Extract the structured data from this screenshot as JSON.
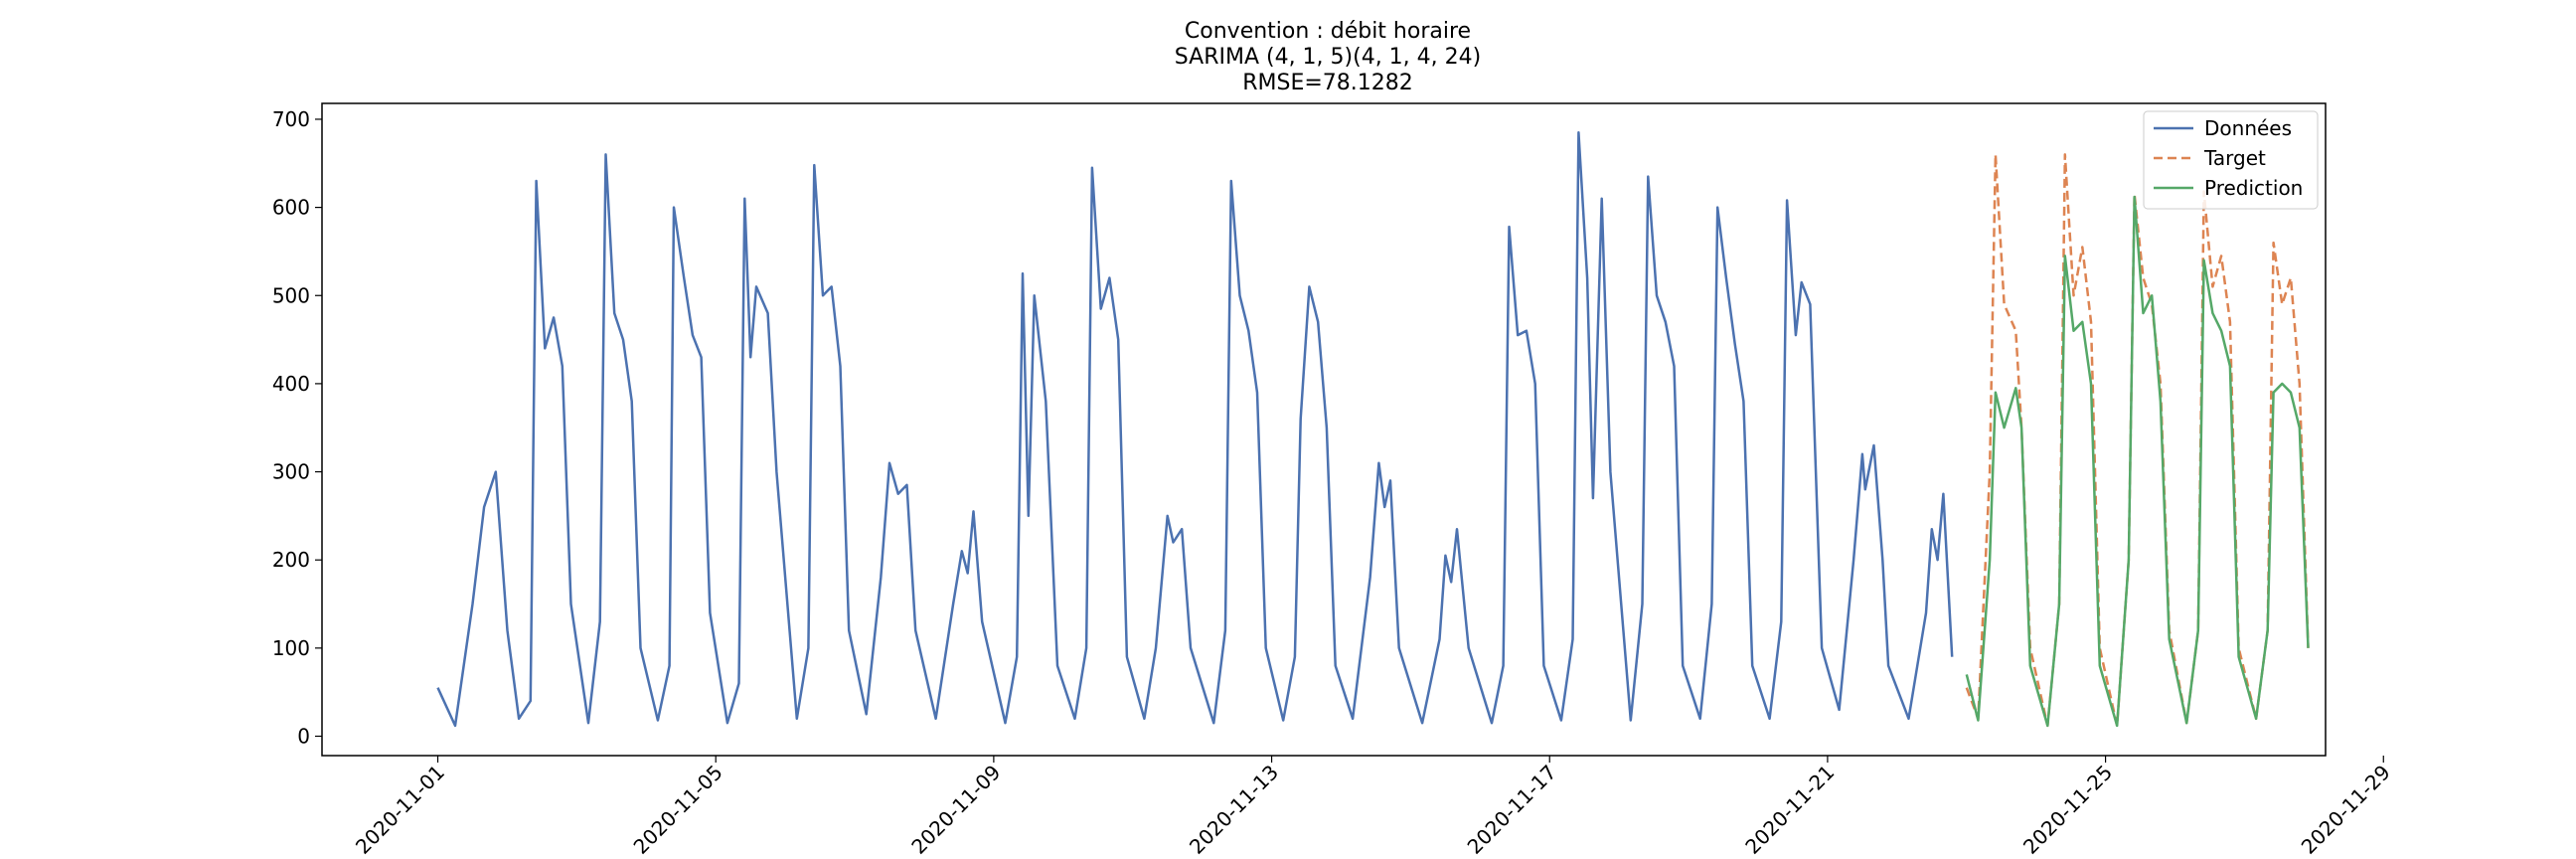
{
  "chart_data": {
    "type": "line",
    "title": "Convention : débit horaire",
    "subtitle": "SARIMA (4, 1, 5)(4, 1, 4, 24)",
    "metric": "RMSE=78.1282",
    "xlabel": "",
    "ylabel": "",
    "xlim": [
      "2020-10-30T08:00",
      "2020-11-28T04:00"
    ],
    "ylim": [
      -22,
      718
    ],
    "x_ticks": [
      "2020-11-01",
      "2020-11-05",
      "2020-11-09",
      "2020-11-13",
      "2020-11-17",
      "2020-11-21",
      "2020-11-25",
      "2020-11-29"
    ],
    "y_ticks": [
      0,
      100,
      200,
      300,
      400,
      500,
      600,
      700
    ],
    "grid": false,
    "legend_position": "top-right",
    "series": [
      {
        "name": "Données",
        "color": "#4c72b0",
        "style": "solid",
        "points": [
          [
            "2020-11-01T00:00",
            55
          ],
          [
            "2020-11-01T06:00",
            12
          ],
          [
            "2020-11-01T12:00",
            150
          ],
          [
            "2020-11-01T16:00",
            260
          ],
          [
            "2020-11-01T20:00",
            300
          ],
          [
            "2020-11-02T00:00",
            120
          ],
          [
            "2020-11-02T04:00",
            20
          ],
          [
            "2020-11-02T08:00",
            40
          ],
          [
            "2020-11-02T10:00",
            630
          ],
          [
            "2020-11-02T13:00",
            440
          ],
          [
            "2020-11-02T16:00",
            475
          ],
          [
            "2020-11-02T19:00",
            420
          ],
          [
            "2020-11-02T22:00",
            150
          ],
          [
            "2020-11-03T04:00",
            15
          ],
          [
            "2020-11-03T08:00",
            130
          ],
          [
            "2020-11-03T10:00",
            660
          ],
          [
            "2020-11-03T13:00",
            480
          ],
          [
            "2020-11-03T16:00",
            450
          ],
          [
            "2020-11-03T19:00",
            380
          ],
          [
            "2020-11-03T22:00",
            100
          ],
          [
            "2020-11-04T04:00",
            18
          ],
          [
            "2020-11-04T08:00",
            80
          ],
          [
            "2020-11-04T09:30",
            600
          ],
          [
            "2020-11-04T13:00",
            520
          ],
          [
            "2020-11-04T16:00",
            455
          ],
          [
            "2020-11-04T19:00",
            430
          ],
          [
            "2020-11-04T22:00",
            140
          ],
          [
            "2020-11-05T04:00",
            15
          ],
          [
            "2020-11-05T08:00",
            60
          ],
          [
            "2020-11-05T10:00",
            610
          ],
          [
            "2020-11-05T12:00",
            430
          ],
          [
            "2020-11-05T14:00",
            510
          ],
          [
            "2020-11-05T18:00",
            480
          ],
          [
            "2020-11-05T21:00",
            300
          ],
          [
            "2020-11-06T04:00",
            20
          ],
          [
            "2020-11-06T08:00",
            100
          ],
          [
            "2020-11-06T10:00",
            648
          ],
          [
            "2020-11-06T13:00",
            500
          ],
          [
            "2020-11-06T16:00",
            510
          ],
          [
            "2020-11-06T19:00",
            420
          ],
          [
            "2020-11-06T22:00",
            120
          ],
          [
            "2020-11-07T04:00",
            25
          ],
          [
            "2020-11-07T09:00",
            180
          ],
          [
            "2020-11-07T12:00",
            310
          ],
          [
            "2020-11-07T15:00",
            275
          ],
          [
            "2020-11-07T18:00",
            285
          ],
          [
            "2020-11-07T21:00",
            120
          ],
          [
            "2020-11-08T04:00",
            20
          ],
          [
            "2020-11-08T10:00",
            150
          ],
          [
            "2020-11-08T13:00",
            210
          ],
          [
            "2020-11-08T15:00",
            185
          ],
          [
            "2020-11-08T17:00",
            255
          ],
          [
            "2020-11-08T20:00",
            130
          ],
          [
            "2020-11-09T04:00",
            15
          ],
          [
            "2020-11-09T08:00",
            90
          ],
          [
            "2020-11-09T10:00",
            525
          ],
          [
            "2020-11-09T12:00",
            250
          ],
          [
            "2020-11-09T14:00",
            500
          ],
          [
            "2020-11-09T18:00",
            380
          ],
          [
            "2020-11-09T22:00",
            80
          ],
          [
            "2020-11-10T04:00",
            20
          ],
          [
            "2020-11-10T08:00",
            100
          ],
          [
            "2020-11-10T10:00",
            645
          ],
          [
            "2020-11-10T13:00",
            485
          ],
          [
            "2020-11-10T16:00",
            520
          ],
          [
            "2020-11-10T19:00",
            450
          ],
          [
            "2020-11-10T22:00",
            90
          ],
          [
            "2020-11-11T04:00",
            20
          ],
          [
            "2020-11-11T08:00",
            100
          ],
          [
            "2020-11-11T12:00",
            250
          ],
          [
            "2020-11-11T14:00",
            220
          ],
          [
            "2020-11-11T17:00",
            235
          ],
          [
            "2020-11-11T20:00",
            100
          ],
          [
            "2020-11-12T04:00",
            15
          ],
          [
            "2020-11-12T08:00",
            120
          ],
          [
            "2020-11-12T10:00",
            630
          ],
          [
            "2020-11-12T13:00",
            500
          ],
          [
            "2020-11-12T16:00",
            460
          ],
          [
            "2020-11-12T19:00",
            390
          ],
          [
            "2020-11-12T22:00",
            100
          ],
          [
            "2020-11-13T04:00",
            18
          ],
          [
            "2020-11-13T08:00",
            90
          ],
          [
            "2020-11-13T10:00",
            360
          ],
          [
            "2020-11-13T13:00",
            510
          ],
          [
            "2020-11-13T16:00",
            470
          ],
          [
            "2020-11-13T19:00",
            350
          ],
          [
            "2020-11-13T22:00",
            80
          ],
          [
            "2020-11-14T04:00",
            20
          ],
          [
            "2020-11-14T10:00",
            180
          ],
          [
            "2020-11-14T13:00",
            310
          ],
          [
            "2020-11-14T15:00",
            260
          ],
          [
            "2020-11-14T17:00",
            290
          ],
          [
            "2020-11-14T20:00",
            100
          ],
          [
            "2020-11-15T04:00",
            15
          ],
          [
            "2020-11-15T10:00",
            110
          ],
          [
            "2020-11-15T12:00",
            205
          ],
          [
            "2020-11-15T14:00",
            175
          ],
          [
            "2020-11-15T16:00",
            235
          ],
          [
            "2020-11-15T20:00",
            100
          ],
          [
            "2020-11-16T04:00",
            15
          ],
          [
            "2020-11-16T08:00",
            80
          ],
          [
            "2020-11-16T10:00",
            578
          ],
          [
            "2020-11-16T13:00",
            455
          ],
          [
            "2020-11-16T16:00",
            460
          ],
          [
            "2020-11-16T19:00",
            400
          ],
          [
            "2020-11-16T22:00",
            80
          ],
          [
            "2020-11-17T04:00",
            18
          ],
          [
            "2020-11-17T08:00",
            110
          ],
          [
            "2020-11-17T10:00",
            685
          ],
          [
            "2020-11-17T13:00",
            520
          ],
          [
            "2020-11-17T15:00",
            270
          ],
          [
            "2020-11-17T18:00",
            610
          ],
          [
            "2020-11-17T21:00",
            300
          ],
          [
            "2020-11-18T04:00",
            18
          ],
          [
            "2020-11-18T08:00",
            150
          ],
          [
            "2020-11-18T10:00",
            635
          ],
          [
            "2020-11-18T13:00",
            500
          ],
          [
            "2020-11-18T16:00",
            470
          ],
          [
            "2020-11-18T19:00",
            420
          ],
          [
            "2020-11-18T22:00",
            80
          ],
          [
            "2020-11-19T04:00",
            20
          ],
          [
            "2020-11-19T08:00",
            150
          ],
          [
            "2020-11-19T10:00",
            600
          ],
          [
            "2020-11-19T13:00",
            520
          ],
          [
            "2020-11-19T16:00",
            445
          ],
          [
            "2020-11-19T19:00",
            380
          ],
          [
            "2020-11-19T22:00",
            80
          ],
          [
            "2020-11-20T04:00",
            20
          ],
          [
            "2020-11-20T08:00",
            130
          ],
          [
            "2020-11-20T10:00",
            608
          ],
          [
            "2020-11-20T13:00",
            455
          ],
          [
            "2020-11-20T15:00",
            515
          ],
          [
            "2020-11-20T18:00",
            490
          ],
          [
            "2020-11-20T22:00",
            100
          ],
          [
            "2020-11-21T04:00",
            30
          ],
          [
            "2020-11-21T09:00",
            200
          ],
          [
            "2020-11-21T12:00",
            320
          ],
          [
            "2020-11-21T13:00",
            280
          ],
          [
            "2020-11-21T16:00",
            330
          ],
          [
            "2020-11-21T19:00",
            200
          ],
          [
            "2020-11-21T21:00",
            80
          ],
          [
            "2020-11-22T04:00",
            20
          ],
          [
            "2020-11-22T10:00",
            140
          ],
          [
            "2020-11-22T12:00",
            235
          ],
          [
            "2020-11-22T14:00",
            200
          ],
          [
            "2020-11-22T16:00",
            275
          ],
          [
            "2020-11-22T19:00",
            90
          ]
        ]
      },
      {
        "name": "Target",
        "color": "#dd8452",
        "style": "dashed",
        "points": [
          [
            "2020-11-23T00:00",
            55
          ],
          [
            "2020-11-23T04:00",
            20
          ],
          [
            "2020-11-23T08:00",
            300
          ],
          [
            "2020-11-23T10:00",
            660
          ],
          [
            "2020-11-23T13:00",
            490
          ],
          [
            "2020-11-23T17:00",
            460
          ],
          [
            "2020-11-23T19:00",
            350
          ],
          [
            "2020-11-23T22:00",
            100
          ],
          [
            "2020-11-24T04:00",
            12
          ],
          [
            "2020-11-24T08:00",
            150
          ],
          [
            "2020-11-24T10:00",
            660
          ],
          [
            "2020-11-24T13:00",
            500
          ],
          [
            "2020-11-24T16:00",
            555
          ],
          [
            "2020-11-24T19:00",
            470
          ],
          [
            "2020-11-24T22:00",
            100
          ],
          [
            "2020-11-25T04:00",
            12
          ],
          [
            "2020-11-25T08:00",
            200
          ],
          [
            "2020-11-25T10:00",
            615
          ],
          [
            "2020-11-25T13:00",
            520
          ],
          [
            "2020-11-25T16:00",
            490
          ],
          [
            "2020-11-25T19:00",
            400
          ],
          [
            "2020-11-25T22:00",
            120
          ],
          [
            "2020-11-26T04:00",
            15
          ],
          [
            "2020-11-26T08:00",
            120
          ],
          [
            "2020-11-26T10:00",
            618
          ],
          [
            "2020-11-26T13:00",
            510
          ],
          [
            "2020-11-26T16:00",
            545
          ],
          [
            "2020-11-26T19:00",
            470
          ],
          [
            "2020-11-26T22:00",
            100
          ],
          [
            "2020-11-27T04:00",
            20
          ],
          [
            "2020-11-27T08:00",
            120
          ],
          [
            "2020-11-27T10:00",
            560
          ],
          [
            "2020-11-27T13:00",
            490
          ],
          [
            "2020-11-27T16:00",
            520
          ],
          [
            "2020-11-27T19:00",
            400
          ],
          [
            "2020-11-27T22:00",
            100
          ]
        ]
      },
      {
        "name": "Prediction",
        "color": "#55a868",
        "style": "solid",
        "points": [
          [
            "2020-11-23T00:00",
            70
          ],
          [
            "2020-11-23T04:00",
            18
          ],
          [
            "2020-11-23T08:00",
            200
          ],
          [
            "2020-11-23T10:00",
            390
          ],
          [
            "2020-11-23T13:00",
            350
          ],
          [
            "2020-11-23T17:00",
            395
          ],
          [
            "2020-11-23T19:00",
            350
          ],
          [
            "2020-11-23T22:00",
            80
          ],
          [
            "2020-11-24T04:00",
            12
          ],
          [
            "2020-11-24T08:00",
            150
          ],
          [
            "2020-11-24T10:00",
            545
          ],
          [
            "2020-11-24T13:00",
            460
          ],
          [
            "2020-11-24T16:00",
            470
          ],
          [
            "2020-11-24T19:00",
            400
          ],
          [
            "2020-11-24T22:00",
            80
          ],
          [
            "2020-11-25T04:00",
            12
          ],
          [
            "2020-11-25T08:00",
            200
          ],
          [
            "2020-11-25T10:00",
            612
          ],
          [
            "2020-11-25T13:00",
            480
          ],
          [
            "2020-11-25T16:00",
            500
          ],
          [
            "2020-11-25T19:00",
            380
          ],
          [
            "2020-11-25T22:00",
            110
          ],
          [
            "2020-11-26T04:00",
            15
          ],
          [
            "2020-11-26T08:00",
            120
          ],
          [
            "2020-11-26T10:00",
            540
          ],
          [
            "2020-11-26T13:00",
            480
          ],
          [
            "2020-11-26T16:00",
            460
          ],
          [
            "2020-11-26T19:00",
            420
          ],
          [
            "2020-11-26T22:00",
            90
          ],
          [
            "2020-11-27T04:00",
            20
          ],
          [
            "2020-11-27T08:00",
            120
          ],
          [
            "2020-11-27T10:00",
            390
          ],
          [
            "2020-11-27T13:00",
            400
          ],
          [
            "2020-11-27T16:00",
            390
          ],
          [
            "2020-11-27T19:00",
            350
          ],
          [
            "2020-11-27T22:00",
            100
          ]
        ]
      }
    ]
  }
}
